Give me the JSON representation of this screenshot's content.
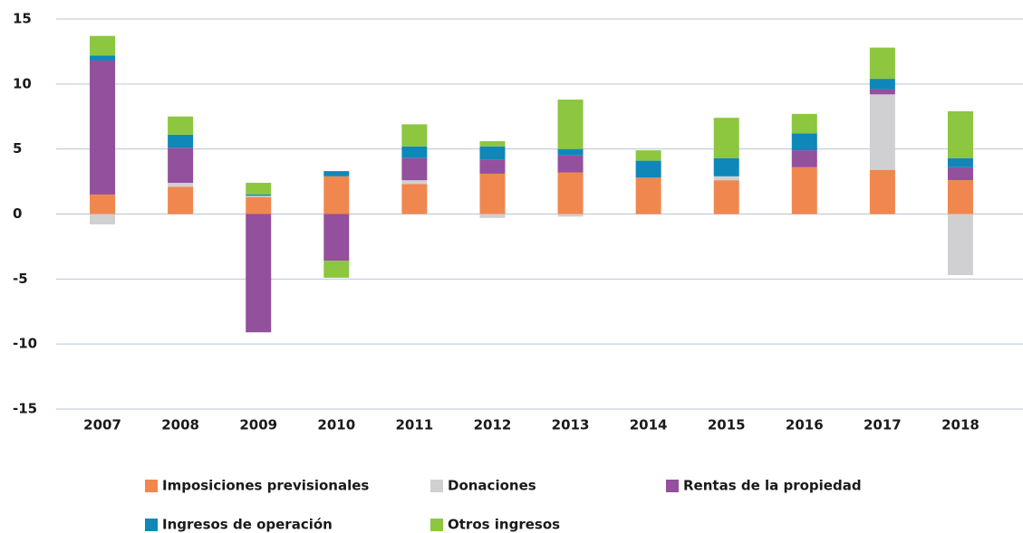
{
  "chart_data": {
    "type": "bar",
    "stacked": true,
    "categories": [
      "2007",
      "2008",
      "2009",
      "2010",
      "2011",
      "2012",
      "2013",
      "2014",
      "2015",
      "2016",
      "2017",
      "2018"
    ],
    "series": [
      {
        "name": "Imposiciones previsionales",
        "color": "#f0874f",
        "values": [
          1.5,
          2.1,
          1.3,
          2.9,
          2.3,
          3.1,
          3.2,
          2.8,
          2.6,
          3.6,
          3.4,
          2.6
        ]
      },
      {
        "name": "Donaciones",
        "color": "#d0d0d2",
        "values": [
          -0.8,
          0.3,
          0.1,
          0,
          0.3,
          -0.3,
          -0.2,
          0,
          0.3,
          0,
          5.8,
          -4.7
        ]
      },
      {
        "name": "Rentas de la propiedad",
        "color": "#93509d",
        "values": [
          10.3,
          2.7,
          -9.1,
          -3.6,
          1.7,
          1.1,
          1.3,
          0,
          0,
          1.3,
          0.4,
          1.0
        ]
      },
      {
        "name": "Ingresos de operación",
        "color": "#0f87b9",
        "values": [
          0.4,
          1.0,
          0.1,
          0.4,
          0.9,
          1.0,
          0.5,
          1.3,
          1.4,
          1.3,
          0.8,
          0.7
        ]
      },
      {
        "name": "Otros ingresos",
        "color": "#8dc63f",
        "values": [
          1.5,
          1.4,
          0.9,
          -1.3,
          1.7,
          0.4,
          3.8,
          0.8,
          3.1,
          1.5,
          2.4,
          3.6
        ]
      }
    ],
    "ylim": [
      -15,
      15
    ],
    "yticks": [
      -15,
      -10,
      -5,
      0,
      5,
      10,
      15
    ],
    "grid": true,
    "legend": "bottom"
  }
}
